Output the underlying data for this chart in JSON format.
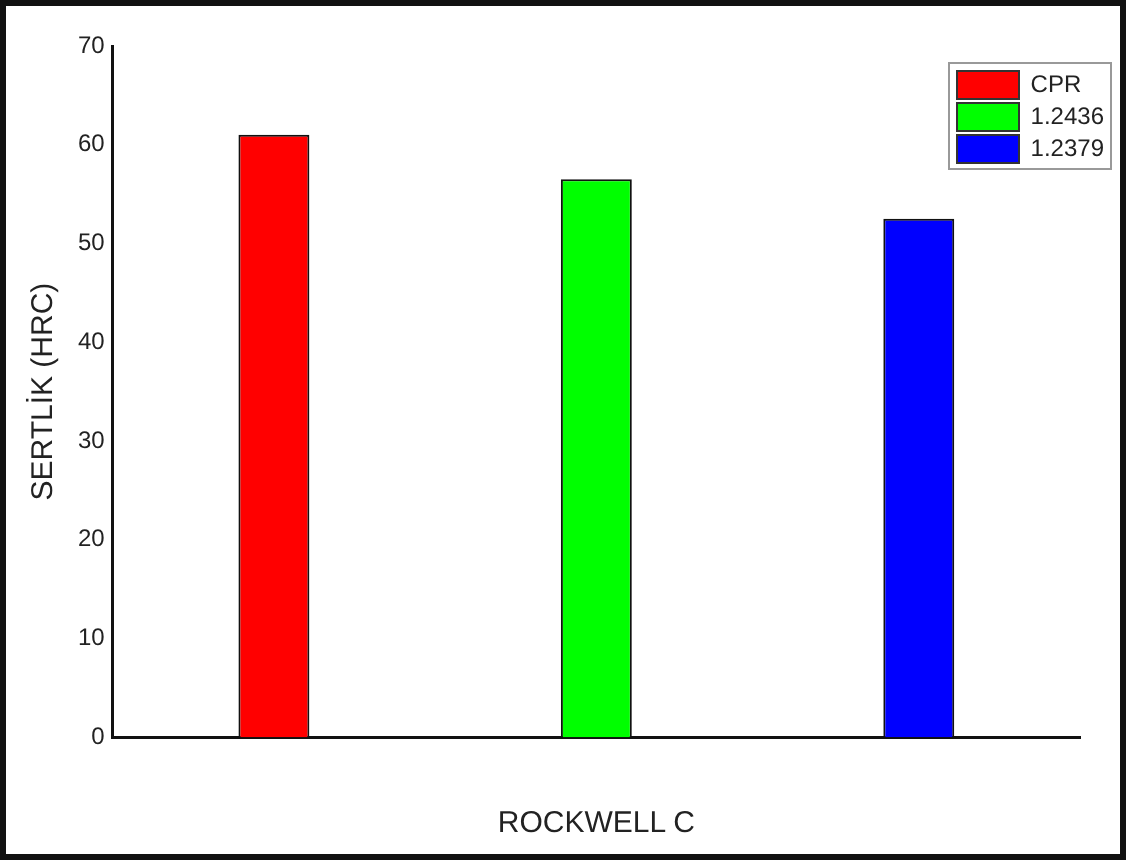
{
  "chart_data": {
    "type": "bar",
    "xlabel": "ROCKWELL C",
    "ylabel": "SERTLİK (HRC)",
    "categories": [
      null
    ],
    "series": [
      {
        "name": "CPR",
        "color": "#ff0000",
        "values": [
          61
        ]
      },
      {
        "name": "1.2436",
        "color": "#00ff00",
        "values": [
          56.5
        ]
      },
      {
        "name": "1.2379",
        "color": "#0000ff",
        "values": [
          52.5
        ]
      }
    ],
    "ylim": [
      0,
      70
    ],
    "yticks": [
      0,
      10,
      20,
      30,
      40,
      50,
      60,
      70
    ],
    "grid": false,
    "legend": "top right"
  }
}
